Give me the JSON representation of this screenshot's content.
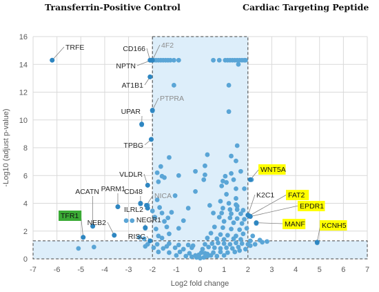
{
  "headers": {
    "left": "Transferrin-Positive Control",
    "right": "Cardiac Targeting Peptide"
  },
  "colors": {
    "point": "#5aa5d6",
    "point_dark": "#2e86c1",
    "region_fill": "#ddeefa",
    "highlight_yellow": "#ffff00",
    "highlight_green": "#3aaa35",
    "grid": "#d9d9d9",
    "dash": "#404040"
  },
  "chart_data": {
    "type": "scatter",
    "xlabel": "Log2 fold change",
    "ylabel": "-Log10 (adjust p-value)",
    "xlim": [
      -7,
      7
    ],
    "ylim": [
      0,
      16
    ],
    "xticks": [
      "-7",
      "-6",
      "-5",
      "-4",
      "-3",
      "-2",
      "-1",
      "0",
      "1",
      "2",
      "3",
      "4",
      "5",
      "6",
      "7"
    ],
    "yticks": [
      "0",
      "2",
      "4",
      "6",
      "8",
      "10",
      "12",
      "14",
      "16"
    ],
    "grid": true,
    "regions": {
      "fold_change_band": {
        "x0": -2,
        "x1": 2,
        "y0": 0,
        "y1": 16
      },
      "significance_band": {
        "x0": -7,
        "x1": 7,
        "y0": 0,
        "y1": 1.3
      }
    },
    "labeled_points": [
      {
        "label": "TRFE",
        "x": -6.2,
        "y": 14.3,
        "style": "plain"
      },
      {
        "label": "CD166",
        "x": -2.1,
        "y": 14.3,
        "style": "plain"
      },
      {
        "label": "4F2",
        "x": -2.0,
        "y": 14.3,
        "style": "gray"
      },
      {
        "label": "NPTN",
        "x": -2.05,
        "y": 14.3,
        "style": "plain"
      },
      {
        "label": "AT1B1",
        "x": -2.1,
        "y": 13.1,
        "style": "plain"
      },
      {
        "label": "PTPRA",
        "x": -2.0,
        "y": 10.7,
        "style": "gray"
      },
      {
        "label": "UPAR",
        "x": -2.45,
        "y": 9.7,
        "style": "plain"
      },
      {
        "label": "TPBG",
        "x": -2.05,
        "y": 8.6,
        "style": "plain"
      },
      {
        "label": "VLDLR",
        "x": -2.2,
        "y": 5.3,
        "style": "plain"
      },
      {
        "label": "CD48",
        "x": -2.5,
        "y": 4.0,
        "style": "plain"
      },
      {
        "label": "NICA",
        "x": -2.25,
        "y": 3.85,
        "style": "gray"
      },
      {
        "label": "PARM1",
        "x": -3.45,
        "y": 3.75,
        "style": "plain"
      },
      {
        "label": "ACATN",
        "x": -4.5,
        "y": 2.35,
        "style": "plain"
      },
      {
        "label": "ILRL2",
        "x": -2.2,
        "y": 3.65,
        "style": "plain"
      },
      {
        "label": "NEGR1",
        "x": -2.3,
        "y": 2.25,
        "style": "plain"
      },
      {
        "label": "NEB2",
        "x": -3.6,
        "y": 1.7,
        "style": "plain"
      },
      {
        "label": "RISC",
        "x": -2.1,
        "y": 1.3,
        "style": "plain"
      },
      {
        "label": "TFR1",
        "x": -4.9,
        "y": 1.55,
        "style": "green"
      },
      {
        "label": "WNT5A",
        "x": 2.1,
        "y": 5.7,
        "style": "yellow"
      },
      {
        "label": "K2C1",
        "x": 2.0,
        "y": 3.15,
        "style": "plain"
      },
      {
        "label": "FAT2",
        "x": 2.05,
        "y": 3.1,
        "style": "yellow"
      },
      {
        "label": "EPDR1",
        "x": 2.1,
        "y": 3.05,
        "style": "yellow"
      },
      {
        "label": "MANF",
        "x": 2.35,
        "y": 2.6,
        "style": "yellow"
      },
      {
        "label": "KCNH5",
        "x": 4.9,
        "y": 1.2,
        "style": "yellow"
      }
    ],
    "points": [
      [
        -6.2,
        14.3
      ],
      [
        -2.05,
        14.3
      ],
      [
        -1.95,
        14.3
      ],
      [
        -1.85,
        14.3
      ],
      [
        -1.75,
        14.3
      ],
      [
        -1.65,
        14.3
      ],
      [
        -1.55,
        14.3
      ],
      [
        -1.45,
        14.3
      ],
      [
        -1.35,
        14.3
      ],
      [
        -1.25,
        14.3
      ],
      [
        -1.1,
        14.3
      ],
      [
        -0.9,
        14.3
      ],
      [
        0.55,
        14.3
      ],
      [
        0.8,
        14.3
      ],
      [
        1.05,
        14.3
      ],
      [
        1.15,
        14.3
      ],
      [
        1.25,
        14.3
      ],
      [
        1.35,
        14.3
      ],
      [
        1.45,
        14.3
      ],
      [
        1.55,
        14.3
      ],
      [
        1.65,
        14.3
      ],
      [
        1.75,
        14.3
      ],
      [
        1.85,
        14.3
      ],
      [
        1.9,
        14.3
      ],
      [
        1.6,
        14.0
      ],
      [
        -2.1,
        13.1
      ],
      [
        -1.1,
        12.5
      ],
      [
        1.2,
        12.5
      ],
      [
        -2.0,
        10.65
      ],
      [
        -2.45,
        9.65
      ],
      [
        1.2,
        10.6
      ],
      [
        -2.05,
        8.6
      ],
      [
        1.55,
        8.15
      ],
      [
        -1.3,
        7.3
      ],
      [
        0.3,
        7.5
      ],
      [
        1.3,
        7.4
      ],
      [
        1.5,
        7.05
      ],
      [
        0.2,
        6.7
      ],
      [
        -1.65,
        6.65
      ],
      [
        1.7,
        6.3
      ],
      [
        -1.8,
        6.2
      ],
      [
        -0.2,
        6.3
      ],
      [
        1.3,
        6.15
      ],
      [
        0.2,
        6.05
      ],
      [
        -0.9,
        6.0
      ],
      [
        1.05,
        5.95
      ],
      [
        -1.6,
        5.95
      ],
      [
        -1.5,
        5.85
      ],
      [
        0.15,
        5.7
      ],
      [
        0.95,
        5.6
      ],
      [
        1.1,
        5.5
      ],
      [
        1.4,
        5.7
      ],
      [
        -1.75,
        5.55
      ],
      [
        2.15,
        5.7
      ],
      [
        -2.2,
        5.3
      ],
      [
        0.9,
        5.25
      ],
      [
        1.5,
        5.05
      ],
      [
        1.85,
        5.05
      ],
      [
        -0.2,
        4.85
      ],
      [
        1.1,
        4.65
      ],
      [
        -1.05,
        4.55
      ],
      [
        -1.8,
        4.25
      ],
      [
        1.5,
        4.35
      ],
      [
        0.85,
        4.15
      ],
      [
        1.2,
        4.0
      ],
      [
        1.5,
        3.9
      ],
      [
        0.4,
        3.85
      ],
      [
        1.55,
        3.8
      ],
      [
        -2.5,
        3.95
      ],
      [
        -2.2,
        3.85
      ],
      [
        -1.7,
        3.7
      ],
      [
        -0.5,
        3.65
      ],
      [
        0.95,
        3.65
      ],
      [
        1.25,
        3.55
      ],
      [
        1.55,
        3.55
      ],
      [
        1.8,
        3.5
      ],
      [
        -3.45,
        3.75
      ],
      [
        -2.0,
        3.45
      ],
      [
        -1.6,
        3.3
      ],
      [
        -1.2,
        3.35
      ],
      [
        0.55,
        3.3
      ],
      [
        0.9,
        3.3
      ],
      [
        1.3,
        3.25
      ],
      [
        1.7,
        3.25
      ],
      [
        2.05,
        3.1
      ],
      [
        -1.9,
        3.0
      ],
      [
        -1.35,
        2.95
      ],
      [
        0.8,
        3.0
      ],
      [
        1.25,
        2.95
      ],
      [
        1.55,
        2.9
      ],
      [
        1.85,
        2.85
      ],
      [
        -3.1,
        2.75
      ],
      [
        -2.85,
        2.75
      ],
      [
        -1.5,
        2.7
      ],
      [
        -0.7,
        2.75
      ],
      [
        1.0,
        2.7
      ],
      [
        1.4,
        2.6
      ],
      [
        1.75,
        2.55
      ],
      [
        2.35,
        2.55
      ],
      [
        -4.5,
        2.35
      ],
      [
        -2.3,
        2.2
      ],
      [
        -1.85,
        2.15
      ],
      [
        -1.4,
        2.3
      ],
      [
        -0.9,
        2.2
      ],
      [
        0.6,
        2.3
      ],
      [
        0.95,
        2.25
      ],
      [
        1.3,
        2.15
      ],
      [
        1.65,
        2.1
      ],
      [
        1.95,
        2.2
      ],
      [
        -3.6,
        1.7
      ],
      [
        -2.1,
        1.3
      ],
      [
        -1.75,
        1.65
      ],
      [
        -1.3,
        1.8
      ],
      [
        0.45,
        1.85
      ],
      [
        0.85,
        1.75
      ],
      [
        1.15,
        1.7
      ],
      [
        1.5,
        1.65
      ],
      [
        1.8,
        1.8
      ],
      [
        2.2,
        1.65
      ],
      [
        -1.6,
        1.5
      ],
      [
        0.3,
        1.5
      ],
      [
        0.7,
        1.45
      ],
      [
        1.0,
        1.4
      ],
      [
        1.4,
        1.45
      ],
      [
        1.7,
        1.4
      ],
      [
        2.1,
        1.3
      ],
      [
        -4.9,
        1.55
      ],
      [
        -2.55,
        1.55
      ],
      [
        -2.35,
        1.45
      ],
      [
        2.5,
        1.35
      ],
      [
        -5.1,
        0.75
      ],
      [
        -4.45,
        0.85
      ],
      [
        -2.2,
        1.05
      ],
      [
        -1.8,
        1.05
      ],
      [
        -1.3,
        1.1
      ],
      [
        -0.9,
        1.0
      ],
      [
        -0.5,
        1.0
      ],
      [
        -0.3,
        0.95
      ],
      [
        0.2,
        1.05
      ],
      [
        0.5,
        1.1
      ],
      [
        0.75,
        1.15
      ],
      [
        1.0,
        1.1
      ],
      [
        1.25,
        1.05
      ],
      [
        1.5,
        1.15
      ],
      [
        1.75,
        1.1
      ],
      [
        2.0,
        1.05
      ],
      [
        2.3,
        1.05
      ],
      [
        2.6,
        1.2
      ],
      [
        4.9,
        1.15
      ],
      [
        -1.95,
        0.8
      ],
      [
        -1.55,
        0.75
      ],
      [
        -1.05,
        0.8
      ],
      [
        -0.7,
        0.7
      ],
      [
        -0.35,
        0.8
      ],
      [
        0.1,
        0.7
      ],
      [
        0.35,
        0.85
      ],
      [
        0.6,
        0.8
      ],
      [
        0.85,
        0.75
      ],
      [
        1.1,
        0.8
      ],
      [
        1.35,
        0.75
      ],
      [
        1.6,
        0.85
      ],
      [
        1.9,
        0.7
      ],
      [
        -1.75,
        0.5
      ],
      [
        -1.3,
        0.45
      ],
      [
        -0.85,
        0.5
      ],
      [
        -0.45,
        0.4
      ],
      [
        0.05,
        0.45
      ],
      [
        0.3,
        0.35
      ],
      [
        0.55,
        0.45
      ],
      [
        0.85,
        0.5
      ],
      [
        1.15,
        0.45
      ],
      [
        1.45,
        0.5
      ],
      [
        -0.6,
        0.2
      ],
      [
        -0.35,
        0.15
      ],
      [
        -0.15,
        0.1
      ],
      [
        0.0,
        0.05
      ],
      [
        0.15,
        0.1
      ],
      [
        0.3,
        0.2
      ],
      [
        -0.2,
        0.25
      ],
      [
        0.45,
        0.25
      ],
      [
        0.7,
        0.2
      ],
      [
        -1.0,
        0.25
      ],
      [
        1.0,
        0.25
      ],
      [
        -0.05,
        0.3
      ],
      [
        0.2,
        0.4
      ],
      [
        -1.4,
        0.9
      ],
      [
        1.65,
        0.6
      ],
      [
        2.1,
        0.95
      ],
      [
        -2.3,
        0.9
      ],
      [
        2.8,
        1.25
      ]
    ]
  }
}
